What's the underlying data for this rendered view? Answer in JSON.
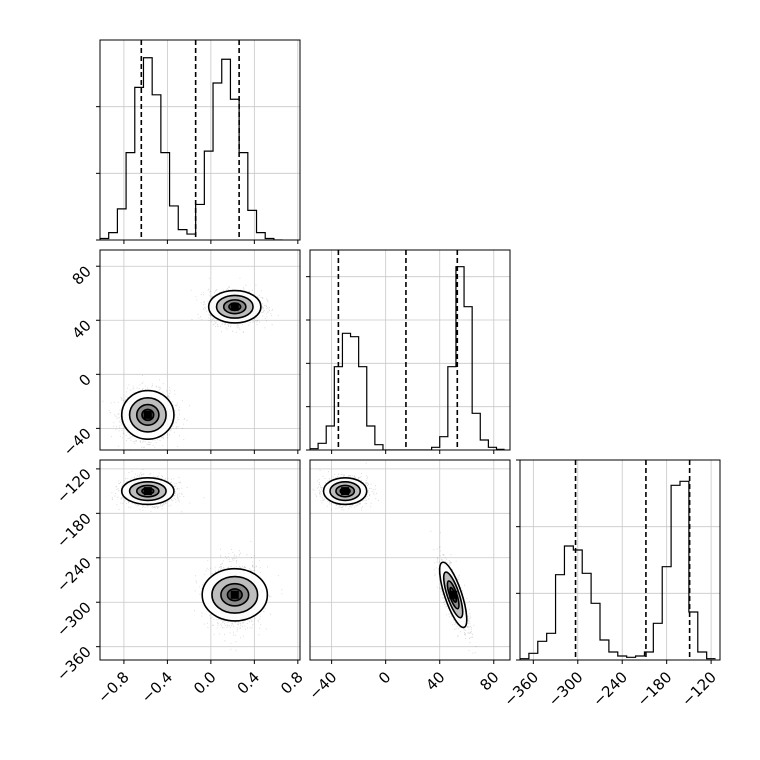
{
  "chart_data": {
    "type": "corner",
    "description_of_layout": "3x3 lower-triangular corner plot of 3 parameters; diagonal panels are 1D histograms with dashed quantile lines; off-diagonal panels are 2D density scatter with contours",
    "grid": true,
    "parameters": [
      {
        "key": "p0",
        "ticks": [
          -0.8,
          -0.4,
          0.0,
          0.4,
          0.8
        ],
        "tick_labels": [
          "−0.8",
          "−0.4",
          "0.0",
          "0.4",
          "0.8"
        ],
        "range": [
          -1.02,
          0.82
        ]
      },
      {
        "key": "p1",
        "ticks": [
          -40,
          0,
          40,
          80
        ],
        "tick_labels": [
          "−40",
          "0",
          "40",
          "80"
        ],
        "range": [
          -56,
          92
        ]
      },
      {
        "key": "p2",
        "ticks": [
          -360,
          -300,
          -240,
          -180,
          -120
        ],
        "tick_labels": [
          "−360",
          "−300",
          "−240",
          "−180",
          "−120"
        ],
        "range": [
          -378,
          -108
        ]
      }
    ],
    "histograms": [
      {
        "param": "p0",
        "bin_edges": [
          -1.02,
          -0.94,
          -0.86,
          -0.78,
          -0.7,
          -0.62,
          -0.54,
          -0.46,
          -0.38,
          -0.3,
          -0.22,
          -0.14,
          -0.06,
          0.02,
          0.1,
          0.18,
          0.26,
          0.34,
          0.42,
          0.5,
          0.58,
          0.66
        ],
        "counts": [
          2,
          10,
          42,
          118,
          206,
          246,
          196,
          118,
          46,
          14,
          8,
          48,
          120,
          212,
          244,
          190,
          118,
          40,
          10,
          2,
          0
        ],
        "ymax": 270,
        "quantiles": [
          -0.64,
          -0.14,
          0.26
        ],
        "yticks": [
          0,
          90,
          180
        ]
      },
      {
        "param": "p1",
        "bin_edges": [
          -56,
          -50,
          -44,
          -38,
          -32,
          -26,
          -20,
          -14,
          -8,
          -2,
          4,
          10,
          16,
          22,
          28,
          34,
          40,
          46,
          52,
          58,
          64,
          70,
          76,
          82,
          88
        ],
        "counts": [
          2,
          10,
          36,
          125,
          175,
          170,
          125,
          36,
          8,
          0,
          0,
          0,
          0,
          0,
          0,
          4,
          20,
          125,
          275,
          215,
          55,
          15,
          4,
          1
        ],
        "ymax": 300,
        "quantiles": [
          -35,
          15,
          53
        ],
        "yticks": [
          0,
          65,
          130,
          195,
          260
        ]
      },
      {
        "param": "p2",
        "bin_edges": [
          -378,
          -366,
          -354,
          -342,
          -330,
          -318,
          -306,
          -294,
          -282,
          -270,
          -258,
          -246,
          -234,
          -222,
          -210,
          -198,
          -186,
          -174,
          -162,
          -150,
          -138,
          -126,
          -114
        ],
        "counts": [
          2,
          10,
          28,
          40,
          128,
          171,
          165,
          130,
          85,
          30,
          12,
          6,
          4,
          6,
          12,
          55,
          140,
          262,
          268,
          72,
          12,
          2
        ],
        "ymax": 300,
        "quantiles": [
          -303,
          -208,
          -149
        ],
        "yticks": [
          0,
          100,
          200,
          300
        ]
      }
    ],
    "scatter_panels": [
      {
        "x": "p0",
        "y": "p1",
        "clusters": [
          {
            "x": -0.58,
            "y": -30,
            "sx": 0.12,
            "sy": 9
          },
          {
            "x": 0.22,
            "y": 50,
            "sx": 0.12,
            "sy": 6
          }
        ]
      },
      {
        "x": "p0",
        "y": "p2",
        "clusters": [
          {
            "x": -0.58,
            "y": -150,
            "sx": 0.12,
            "sy": 9
          },
          {
            "x": 0.22,
            "y": -290,
            "sx": 0.12,
            "sy": 22
          }
        ]
      },
      {
        "x": "p1",
        "y": "p2",
        "clusters": [
          {
            "x": -30,
            "y": -150,
            "sx": 8,
            "sy": 9
          },
          {
            "x": 50,
            "y": -290,
            "sx": 5,
            "sy": 22,
            "rho": -0.75
          }
        ]
      }
    ]
  }
}
